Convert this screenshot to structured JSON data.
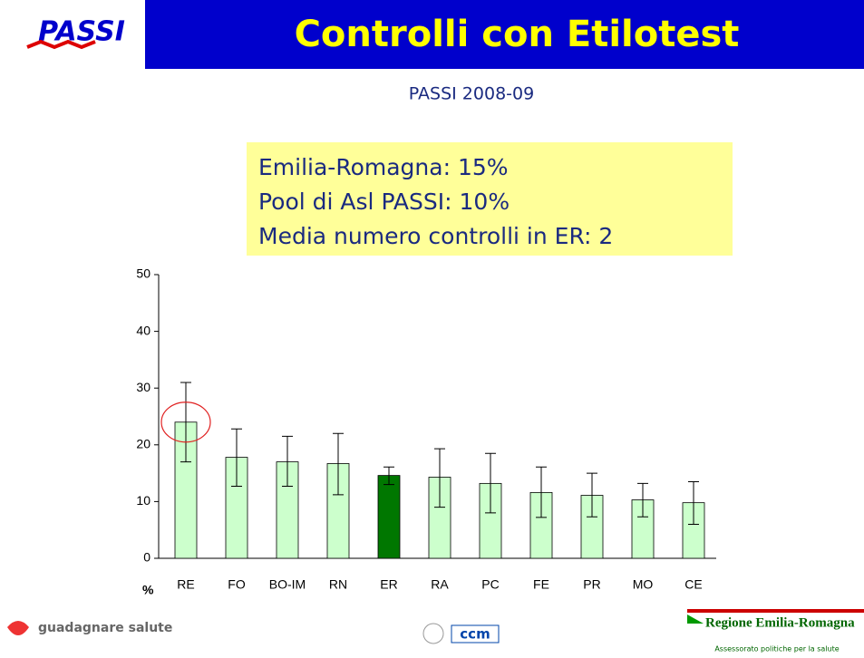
{
  "header": {
    "logo": "PASSI",
    "title": "Controlli con Etilotest",
    "subtitle": "PASSI 2008-09"
  },
  "summary": [
    "Emilia-Romagna: 15%",
    "Pool di Asl PASSI: 10%",
    "Media numero controlli in ER: 2"
  ],
  "chart_data": {
    "type": "bar",
    "y_unit_label": "%",
    "categories": [
      "RE",
      "FO",
      "BO-IM",
      "RN",
      "ER",
      "RA",
      "PC",
      "FE",
      "PR",
      "MO",
      "CE"
    ],
    "values": [
      24,
      17.8,
      17,
      16.7,
      14.6,
      14.3,
      13.2,
      11.6,
      11.1,
      10.3,
      9.8
    ],
    "ci_low": [
      17,
      12.7,
      12.7,
      11.2,
      13,
      9,
      8,
      7.2,
      7.3,
      7.3,
      6
    ],
    "ci_high": [
      31,
      22.8,
      21.5,
      22,
      16.1,
      19.3,
      18.5,
      16.1,
      15,
      13.2,
      13.5
    ],
    "colors": [
      "#ccffcc",
      "#ccffcc",
      "#ccffcc",
      "#ccffcc",
      "#007700",
      "#ccffcc",
      "#ccffcc",
      "#ccffcc",
      "#ccffcc",
      "#ccffcc",
      "#ccffcc"
    ],
    "ylim": [
      0,
      50
    ],
    "yticks": [
      0,
      10,
      20,
      30,
      40,
      50
    ],
    "highlight_index": 0
  },
  "footer": {
    "left": "guadagnare salute",
    "center": "ccm",
    "right": "Regione Emilia-Romagna",
    "right_sub": "Assessorato politiche per la salute"
  }
}
